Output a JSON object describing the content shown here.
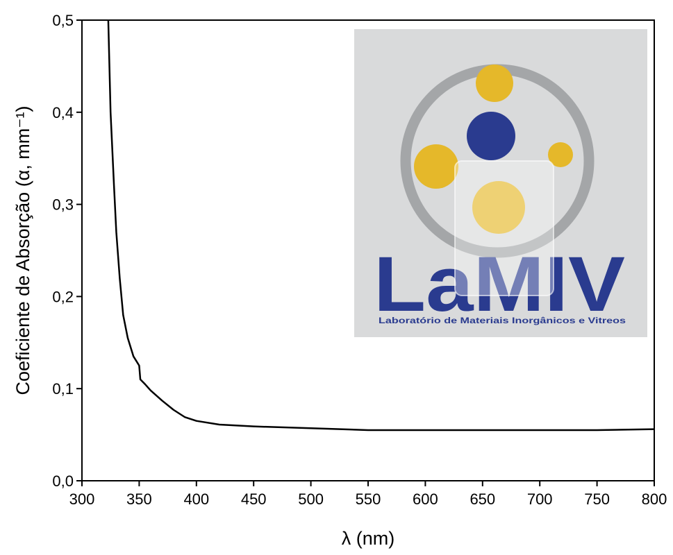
{
  "chart_data": {
    "type": "line",
    "x_label": "λ (nm)",
    "y_label": "Coeficiente de Absorção (α, mm⁻¹)",
    "inset_logo": "LaMIV",
    "inset_caption": "Laboratório de Materiais Inorgânicos e Vitreos",
    "x": [
      323,
      325,
      328,
      330,
      333,
      336,
      340,
      345,
      349,
      350,
      351,
      355,
      360,
      370,
      380,
      390,
      400,
      420,
      450,
      500,
      550,
      600,
      650,
      700,
      750,
      800
    ],
    "series": [
      {
        "color": "#000000",
        "values": [
          0.5,
          0.4,
          0.32,
          0.27,
          0.22,
          0.18,
          0.155,
          0.135,
          0.127,
          0.125,
          0.11,
          0.105,
          0.098,
          0.087,
          0.077,
          0.069,
          0.065,
          0.061,
          0.059,
          0.057,
          0.055,
          0.055,
          0.055,
          0.055,
          0.055,
          0.056
        ]
      }
    ],
    "xlim": [
      300,
      800
    ],
    "ylim": [
      0,
      0.5
    ],
    "xticks": [
      300,
      350,
      400,
      450,
      500,
      550,
      600,
      650,
      700,
      750,
      800
    ],
    "yticks": [
      {
        "value": 0,
        "label": "0,0"
      },
      {
        "value": 0.1,
        "label": "0,1"
      },
      {
        "value": 0.2,
        "label": "0,2"
      },
      {
        "value": 0.3,
        "label": "0,3"
      },
      {
        "value": 0.4,
        "label": "0,4"
      },
      {
        "value": 0.5,
        "label": "0,5"
      }
    ]
  }
}
